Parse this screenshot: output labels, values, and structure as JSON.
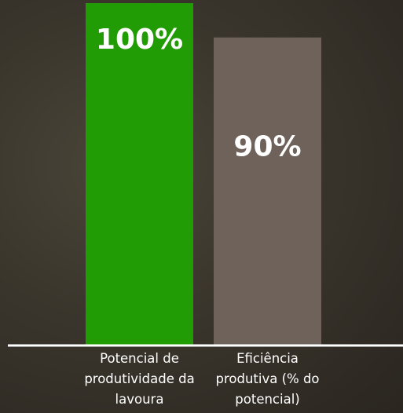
{
  "chart_data": {
    "type": "bar",
    "categories": [
      "Potencial de produtividade da lavoura",
      "Eficiência produtiva (% do potencial)"
    ],
    "values": [
      100,
      90
    ],
    "value_labels": [
      "100%",
      "90%"
    ],
    "colors": [
      "#219c05",
      "#6e625b"
    ]
  }
}
